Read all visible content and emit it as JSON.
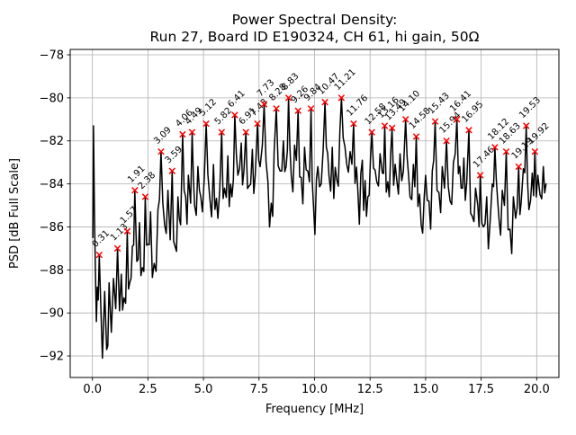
{
  "window": {
    "kind": "matplotlib-figure",
    "background": "#ffffff"
  },
  "chart_data": {
    "type": "line",
    "title_line1": "Power Spectral Density:",
    "title_line2": "Run 27, Board ID E190324, CH 61, hi gain, 50Ω",
    "xlabel": "Frequency [MHz]",
    "ylabel": "PSD [dB Full Scale]",
    "xlim": [
      -1.0,
      21.0
    ],
    "ylim": [
      -93.0,
      -77.75
    ],
    "xticks": [
      0.0,
      2.5,
      5.0,
      7.5,
      10.0,
      12.5,
      15.0,
      17.5,
      20.0
    ],
    "xtick_labels": [
      "0.0",
      "2.5",
      "5.0",
      "7.5",
      "10.0",
      "12.5",
      "15.0",
      "17.5",
      "20.0"
    ],
    "yticks": [
      -78,
      -80,
      -82,
      -84,
      -86,
      -88,
      -90,
      -92
    ],
    "ytick_labels": [
      "−78",
      "−80",
      "−82",
      "−84",
      "−86",
      "−88",
      "−90",
      "−92"
    ],
    "grid": true,
    "legend": "none",
    "line_color": "#000000",
    "line_width": 1.5,
    "marker_style": "x",
    "marker_color": "#ff0000",
    "grid_color": "#b0b0b0",
    "annotation_rotation_deg": 45,
    "peaks": [
      {
        "f": 0.31,
        "psd": -87.3,
        "label": "0.31"
      },
      {
        "f": 1.13,
        "psd": -87.0,
        "label": "1.13"
      },
      {
        "f": 1.57,
        "psd": -86.2,
        "label": "1.57"
      },
      {
        "f": 1.91,
        "psd": -84.3,
        "label": "1.91"
      },
      {
        "f": 2.38,
        "psd": -84.6,
        "label": "2.38"
      },
      {
        "f": 3.09,
        "psd": -82.5,
        "label": "3.09"
      },
      {
        "f": 3.59,
        "psd": -83.4,
        "label": "3.59"
      },
      {
        "f": 4.06,
        "psd": -81.7,
        "label": "4.06"
      },
      {
        "f": 4.49,
        "psd": -81.6,
        "label": "4.49"
      },
      {
        "f": 5.12,
        "psd": -81.2,
        "label": "5.12"
      },
      {
        "f": 5.82,
        "psd": -81.6,
        "label": "5.82"
      },
      {
        "f": 6.41,
        "psd": -80.8,
        "label": "6.41"
      },
      {
        "f": 6.91,
        "psd": -81.6,
        "label": "6.91"
      },
      {
        "f": 7.43,
        "psd": -81.2,
        "label": "7.43"
      },
      {
        "f": 7.73,
        "psd": -80.3,
        "label": "7.73"
      },
      {
        "f": 8.28,
        "psd": -80.5,
        "label": "8.28"
      },
      {
        "f": 8.83,
        "psd": -80.0,
        "label": "8.83"
      },
      {
        "f": 9.26,
        "psd": -80.6,
        "label": "9.26"
      },
      {
        "f": 9.84,
        "psd": -80.5,
        "label": "9.84"
      },
      {
        "f": 10.47,
        "psd": -80.2,
        "label": "10.47"
      },
      {
        "f": 11.21,
        "psd": -80.0,
        "label": "11.21"
      },
      {
        "f": 11.76,
        "psd": -81.2,
        "label": "11.76"
      },
      {
        "f": 12.58,
        "psd": -81.6,
        "label": "12.58"
      },
      {
        "f": 13.16,
        "psd": -81.3,
        "label": "13.16"
      },
      {
        "f": 13.49,
        "psd": -81.4,
        "label": "13.49"
      },
      {
        "f": 14.1,
        "psd": -81.0,
        "label": "14.10"
      },
      {
        "f": 14.58,
        "psd": -81.8,
        "label": "14.58"
      },
      {
        "f": 15.43,
        "psd": -81.1,
        "label": "15.43"
      },
      {
        "f": 15.94,
        "psd": -82.0,
        "label": "15.94"
      },
      {
        "f": 16.41,
        "psd": -81.0,
        "label": "16.41"
      },
      {
        "f": 16.95,
        "psd": -81.5,
        "label": "16.95"
      },
      {
        "f": 17.46,
        "psd": -83.6,
        "label": "17.46"
      },
      {
        "f": 18.12,
        "psd": -82.3,
        "label": "18.12"
      },
      {
        "f": 18.63,
        "psd": -82.5,
        "label": "18.63"
      },
      {
        "f": 19.19,
        "psd": -83.2,
        "label": "19.19"
      },
      {
        "f": 19.53,
        "psd": -81.3,
        "label": "19.53"
      },
      {
        "f": 19.92,
        "psd": -82.5,
        "label": "19.92"
      }
    ],
    "trace_intro": [
      [
        0.02,
        -86.5
      ],
      [
        0.05,
        -81.3
      ],
      [
        0.09,
        -85.2
      ],
      [
        0.13,
        -87.8
      ],
      [
        0.18,
        -90.4
      ],
      [
        0.22,
        -88.8
      ],
      [
        0.26,
        -89.4
      ]
    ],
    "trace_dips": [
      [
        0.38,
        -89.8
      ],
      [
        0.45,
        -92.1
      ],
      [
        0.55,
        -89.0
      ],
      [
        0.64,
        -91.7
      ],
      [
        0.75,
        -88.6
      ],
      [
        0.85,
        -90.9
      ],
      [
        0.95,
        -88.4
      ],
      [
        1.05,
        -89.8
      ],
      [
        1.22,
        -89.9
      ],
      [
        1.3,
        -88.2
      ],
      [
        1.42,
        -89.3
      ],
      [
        1.68,
        -88.6
      ],
      [
        1.8,
        -86.9
      ],
      [
        2.0,
        -87.6
      ],
      [
        2.12,
        -85.8
      ],
      [
        2.25,
        -87.9
      ],
      [
        2.5,
        -86.8
      ],
      [
        2.62,
        -85.3
      ],
      [
        2.78,
        -87.7
      ],
      [
        2.95,
        -85.2
      ],
      [
        3.25,
        -85.9
      ],
      [
        3.4,
        -84.3
      ],
      [
        3.5,
        -86.6
      ],
      [
        3.72,
        -86.9
      ],
      [
        3.85,
        -84.6
      ],
      [
        3.97,
        -85.9
      ],
      [
        4.2,
        -84.6
      ],
      [
        4.32,
        -83.6
      ],
      [
        4.42,
        -84.9
      ],
      [
        4.6,
        -85.0
      ],
      [
        4.75,
        -83.2
      ],
      [
        4.95,
        -85.3
      ],
      [
        5.28,
        -84.6
      ],
      [
        5.45,
        -83.1
      ],
      [
        5.65,
        -85.6
      ],
      [
        5.95,
        -84.2
      ],
      [
        6.1,
        -82.7
      ],
      [
        6.28,
        -84.6
      ],
      [
        6.55,
        -83.6
      ],
      [
        6.7,
        -82.1
      ],
      [
        6.82,
        -83.4
      ],
      [
        7.05,
        -84.1
      ],
      [
        7.2,
        -82.4
      ],
      [
        7.33,
        -83.6
      ],
      [
        7.55,
        -83.2
      ],
      [
        7.65,
        -82.2
      ],
      [
        7.9,
        -83.9
      ],
      [
        8.05,
        -84.9
      ],
      [
        8.18,
        -82.5
      ],
      [
        8.45,
        -83.4
      ],
      [
        8.6,
        -82.0
      ],
      [
        8.72,
        -83.2
      ],
      [
        8.95,
        -83.6
      ],
      [
        9.1,
        -82.2
      ],
      [
        9.4,
        -83.7
      ],
      [
        9.55,
        -82.3
      ],
      [
        9.7,
        -83.4
      ],
      [
        9.95,
        -85.0
      ],
      [
        10.15,
        -83.2
      ],
      [
        10.3,
        -84.0
      ],
      [
        10.65,
        -83.6
      ],
      [
        10.8,
        -82.3
      ],
      [
        11.0,
        -83.8
      ],
      [
        11.45,
        -83.1
      ],
      [
        11.6,
        -82.5
      ],
      [
        11.95,
        -84.3
      ],
      [
        12.15,
        -82.9
      ],
      [
        12.4,
        -84.6
      ],
      [
        12.8,
        -83.9
      ],
      [
        12.95,
        -82.6
      ],
      [
        13.05,
        -83.5
      ],
      [
        13.3,
        -83.9
      ],
      [
        13.7,
        -83.8
      ],
      [
        13.85,
        -82.6
      ],
      [
        14.0,
        -83.4
      ],
      [
        14.3,
        -84.6
      ],
      [
        14.45,
        -83.1
      ],
      [
        14.8,
        -85.9
      ],
      [
        15.0,
        -83.6
      ],
      [
        15.15,
        -84.8
      ],
      [
        15.3,
        -83.4
      ],
      [
        15.6,
        -84.4
      ],
      [
        15.75,
        -83.2
      ],
      [
        15.85,
        -84.2
      ],
      [
        16.1,
        -84.8
      ],
      [
        16.25,
        -83.0
      ],
      [
        16.6,
        -84.2
      ],
      [
        16.72,
        -82.8
      ],
      [
        16.85,
        -83.9
      ],
      [
        17.1,
        -85.5
      ],
      [
        17.25,
        -84.2
      ],
      [
        17.35,
        -85.0
      ],
      [
        17.6,
        -86.0
      ],
      [
        17.75,
        -84.6
      ],
      [
        17.9,
        -85.8
      ],
      [
        18.0,
        -84.0
      ],
      [
        18.3,
        -85.6
      ],
      [
        18.45,
        -84.3
      ],
      [
        18.55,
        -85.0
      ],
      [
        18.8,
        -86.1
      ],
      [
        18.95,
        -84.6
      ],
      [
        19.05,
        -85.6
      ],
      [
        19.3,
        -84.9
      ],
      [
        19.4,
        -83.3
      ],
      [
        19.65,
        -85.2
      ],
      [
        19.8,
        -83.5
      ],
      [
        20.05,
        -83.6
      ],
      [
        20.15,
        -84.5
      ],
      [
        20.3,
        -83.2
      ]
    ],
    "trace_end": [
      20.42,
      -84.0
    ]
  }
}
